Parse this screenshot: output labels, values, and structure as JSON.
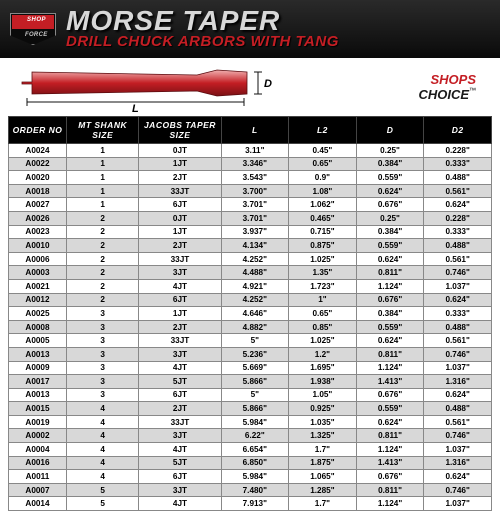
{
  "header": {
    "logo_top": "SHOP",
    "logo_bot": "FORCE",
    "title": "MORSE TAPER",
    "subtitle": "DRILL CHUCK ARBORS WITH TANG"
  },
  "choice": {
    "top": "SHOPS",
    "bot": "CHOICE"
  },
  "diagram": {
    "L_label": "L",
    "D_label": "D"
  },
  "table": {
    "columns": [
      "ORDER NO",
      "MT SHANK SIZE",
      "JACOBS TAPER SIZE",
      "L",
      "L2",
      "D",
      "D2"
    ],
    "rows": [
      [
        "A0024",
        "1",
        "0JT",
        "3.11\"",
        "0.45\"",
        "0.25\"",
        "0.228\""
      ],
      [
        "A0022",
        "1",
        "1JT",
        "3.346\"",
        "0.65\"",
        "0.384\"",
        "0.333\""
      ],
      [
        "A0020",
        "1",
        "2JT",
        "3.543\"",
        "0.9\"",
        "0.559\"",
        "0.488\""
      ],
      [
        "A0018",
        "1",
        "33JT",
        "3.700\"",
        "1.08\"",
        "0.624\"",
        "0.561\""
      ],
      [
        "A0027",
        "1",
        "6JT",
        "3.701\"",
        "1.062\"",
        "0.676\"",
        "0.624\""
      ],
      [
        "A0026",
        "2",
        "0JT",
        "3.701\"",
        "0.465\"",
        "0.25\"",
        "0.228\""
      ],
      [
        "A0023",
        "2",
        "1JT",
        "3.937\"",
        "0.715\"",
        "0.384\"",
        "0.333\""
      ],
      [
        "A0010",
        "2",
        "2JT",
        "4.134\"",
        "0.875\"",
        "0.559\"",
        "0.488\""
      ],
      [
        "A0006",
        "2",
        "33JT",
        "4.252\"",
        "1.025\"",
        "0.624\"",
        "0.561\""
      ],
      [
        "A0003",
        "2",
        "3JT",
        "4.488\"",
        "1.35\"",
        "0.811\"",
        "0.746\""
      ],
      [
        "A0021",
        "2",
        "4JT",
        "4.921\"",
        "1.723\"",
        "1.124\"",
        "1.037\""
      ],
      [
        "A0012",
        "2",
        "6JT",
        "4.252\"",
        "1\"",
        "0.676\"",
        "0.624\""
      ],
      [
        "A0025",
        "3",
        "1JT",
        "4.646\"",
        "0.65\"",
        "0.384\"",
        "0.333\""
      ],
      [
        "A0008",
        "3",
        "2JT",
        "4.882\"",
        "0.85\"",
        "0.559\"",
        "0.488\""
      ],
      [
        "A0005",
        "3",
        "33JT",
        "5\"",
        "1.025\"",
        "0.624\"",
        "0.561\""
      ],
      [
        "A0013",
        "3",
        "3JT",
        "5.236\"",
        "1.2\"",
        "0.811\"",
        "0.746\""
      ],
      [
        "A0009",
        "3",
        "4JT",
        "5.669\"",
        "1.695\"",
        "1.124\"",
        "1.037\""
      ],
      [
        "A0017",
        "3",
        "5JT",
        "5.866\"",
        "1.938\"",
        "1.413\"",
        "1.316\""
      ],
      [
        "A0013",
        "3",
        "6JT",
        "5\"",
        "1.05\"",
        "0.676\"",
        "0.624\""
      ],
      [
        "A0015",
        "4",
        "2JT",
        "5.866\"",
        "0.925\"",
        "0.559\"",
        "0.488\""
      ],
      [
        "A0019",
        "4",
        "33JT",
        "5.984\"",
        "1.035\"",
        "0.624\"",
        "0.561\""
      ],
      [
        "A0002",
        "4",
        "3JT",
        "6.22\"",
        "1.325\"",
        "0.811\"",
        "0.746\""
      ],
      [
        "A0004",
        "4",
        "4JT",
        "6.654\"",
        "1.7\"",
        "1.124\"",
        "1.037\""
      ],
      [
        "A0016",
        "4",
        "5JT",
        "6.850\"",
        "1.875\"",
        "1.413\"",
        "1.316\""
      ],
      [
        "A0011",
        "4",
        "6JT",
        "5.984\"",
        "1.065\"",
        "0.676\"",
        "0.624\""
      ],
      [
        "A0007",
        "5",
        "3JT",
        "7.480\"",
        "1.285\"",
        "0.811\"",
        "0.746\""
      ],
      [
        "A0014",
        "5",
        "4JT",
        "7.913\"",
        "1.7\"",
        "1.124\"",
        "1.037\""
      ]
    ],
    "header_bg": "#000000",
    "header_color": "#ffffff",
    "row_bg_odd": "#ffffff",
    "row_bg_even": "#d8d8d8",
    "border_color": "#888888",
    "font_size": 8.2
  },
  "colors": {
    "brand_red": "#c41e24",
    "dark": "#0a0a0a",
    "silver": "#d8d8d8"
  }
}
